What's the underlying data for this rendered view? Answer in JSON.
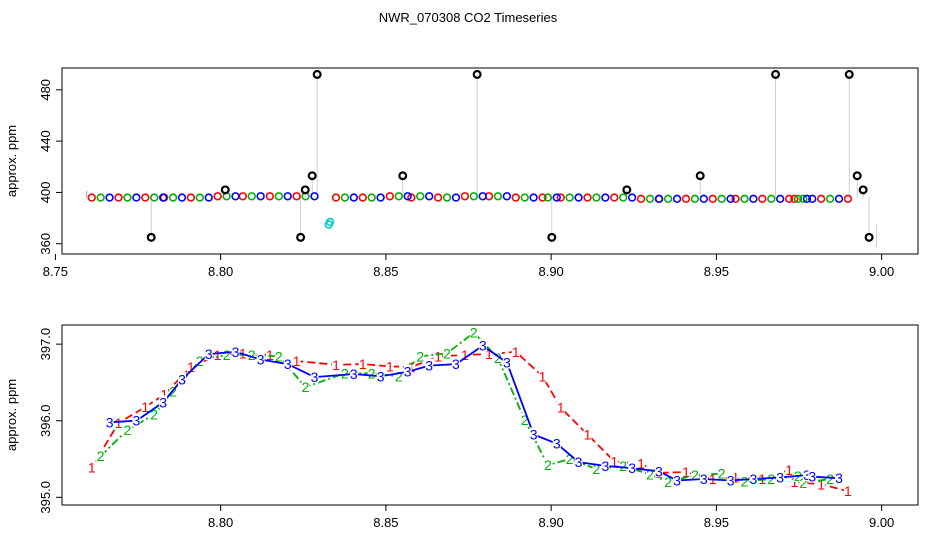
{
  "chart_data": [
    {
      "type": "scatter",
      "title": "NWR_070308  CO2 Timeseries",
      "xlabel": "",
      "ylabel": "approx. ppm",
      "xlim": [
        8.752,
        9.011
      ],
      "ylim": [
        352,
        497
      ],
      "x_ticks": [
        "8.75",
        "8.80",
        "8.85",
        "8.90",
        "8.95",
        "9.00"
      ],
      "y_ticks": [
        "360",
        "400",
        "440",
        "480"
      ],
      "grid": false,
      "series": [
        {
          "color": "#ff0000",
          "marker": "circle",
          "x": [
            8.761,
            8.7691,
            8.7772,
            8.7829,
            8.791,
            8.7991,
            8.8067,
            8.8149,
            8.823,
            8.8349,
            8.843,
            8.8512,
            8.8577,
            8.8658,
            8.8739,
            8.8812,
            8.8893,
            8.8974,
            8.9029,
            8.911,
            8.9191,
            8.9272,
            8.9327,
            8.9408,
            8.9489,
            8.9558,
            8.9639,
            8.972,
            8.9736,
            8.9817,
            8.9898
          ],
          "y": [
            396,
            396,
            396,
            396,
            396,
            397,
            397,
            397,
            397,
            396,
            396,
            397,
            396,
            396,
            397,
            397,
            396,
            396,
            396,
            396,
            396,
            395,
            395,
            395,
            395,
            395,
            395,
            395,
            395,
            395,
            395
          ]
        },
        {
          "color": "#00b000",
          "marker": "circle",
          "x": [
            8.7637,
            8.7718,
            8.7799,
            8.7856,
            8.7937,
            8.8018,
            8.8094,
            8.8176,
            8.8257,
            8.8376,
            8.8457,
            8.8539,
            8.8604,
            8.8685,
            8.8766,
            8.8839,
            8.892,
            8.899,
            8.9056,
            8.9137,
            8.9218,
            8.9299,
            8.9354,
            8.9435,
            8.9516,
            8.9585,
            8.9666,
            8.9747,
            8.9763,
            8.9844
          ],
          "y": [
            396,
            396,
            396,
            396,
            396,
            397,
            397,
            397,
            397,
            396,
            396,
            397,
            397,
            396,
            397,
            397,
            396,
            396,
            396,
            396,
            396,
            395,
            395,
            395,
            395,
            395,
            395,
            395,
            395,
            395
          ]
        },
        {
          "color": "#0000ff",
          "marker": "circle",
          "x": [
            8.7664,
            8.7745,
            8.7826,
            8.7883,
            8.7964,
            8.8045,
            8.8121,
            8.8203,
            8.8284,
            8.8403,
            8.8484,
            8.8566,
            8.8631,
            8.8712,
            8.8793,
            8.8866,
            8.8947,
            8.9017,
            8.9083,
            8.9164,
            8.9245,
            8.9326,
            8.9381,
            8.9462,
            8.9543,
            8.9612,
            8.9693,
            8.9774,
            8.979,
            8.9871
          ],
          "y": [
            396,
            396,
            396,
            396,
            396,
            397,
            397,
            397,
            397,
            396,
            396,
            397,
            397,
            396,
            397,
            397,
            396,
            396,
            396,
            396,
            396,
            395,
            395,
            395,
            395,
            395,
            395,
            395,
            395,
            395
          ]
        },
        {
          "color": "#000000",
          "marker": "circle",
          "x": [
            8.779,
            8.8014,
            8.8242,
            8.8256,
            8.8277,
            8.8292,
            8.8551,
            8.8776,
            8.9002,
            8.9229,
            8.9451,
            8.9679,
            8.9902,
            8.9926,
            8.9944,
            8.9962
          ],
          "y": [
            365,
            402,
            365,
            402,
            413,
            492,
            413,
            492,
            365,
            402,
            413,
            492,
            492,
            413,
            402,
            365
          ]
        },
        {
          "color": "#00cccc",
          "marker": "circle",
          "x": [
            8.8327,
            8.8331
          ],
          "y": [
            375,
            377
          ]
        }
      ]
    },
    {
      "type": "line",
      "title": "",
      "xlabel": "",
      "ylabel": "approx. ppm",
      "xlim": [
        8.752,
        9.011
      ],
      "ylim": [
        394.9,
        397.25
      ],
      "x_ticks": [
        "8.80",
        "8.85",
        "8.90",
        "8.95",
        "9.00"
      ],
      "y_ticks": [
        "395.0",
        "396.0",
        "397.0"
      ],
      "grid": false,
      "series": [
        {
          "name": "1",
          "color": "#ff0000",
          "dash": "8,4",
          "x": [
            8.761,
            8.7691,
            8.7772,
            8.7829,
            8.791,
            8.7991,
            8.8067,
            8.8149,
            8.823,
            8.8349,
            8.843,
            8.8512,
            8.8577,
            8.8658,
            8.8739,
            8.8812,
            8.8893,
            8.8974,
            8.9029,
            8.911,
            8.9191,
            8.9272,
            8.9327,
            8.9408,
            8.9489,
            8.9558,
            8.9639,
            8.972,
            8.9736,
            8.9817,
            8.9898
          ],
          "y": [
            395.39,
            395.97,
            396.18,
            396.34,
            396.7,
            396.86,
            396.88,
            396.86,
            396.78,
            396.73,
            396.74,
            396.71,
            396.7,
            396.84,
            396.86,
            396.87,
            396.9,
            396.58,
            396.17,
            395.82,
            395.47,
            395.44,
            395.32,
            395.33,
            395.24,
            395.26,
            395.24,
            395.36,
            395.2,
            395.17,
            395.08
          ]
        },
        {
          "name": "2",
          "color": "#00b000",
          "dash": "8,3,2,3",
          "x": [
            8.7637,
            8.7718,
            8.7799,
            8.7856,
            8.7937,
            8.8018,
            8.8094,
            8.8176,
            8.8257,
            8.8376,
            8.8457,
            8.8539,
            8.8604,
            8.8685,
            8.8766,
            8.8839,
            8.892,
            8.899,
            8.9056,
            8.9137,
            8.9218,
            8.9299,
            8.9354,
            8.9435,
            8.9516,
            8.9585,
            8.9666,
            8.9747,
            8.9763,
            8.9844
          ],
          "y": [
            395.54,
            395.88,
            396.08,
            396.38,
            396.78,
            396.86,
            396.86,
            396.84,
            396.44,
            396.62,
            396.62,
            396.58,
            396.84,
            396.88,
            397.15,
            396.82,
            396.01,
            395.42,
            395.5,
            395.37,
            395.41,
            395.3,
            395.2,
            395.29,
            395.31,
            395.21,
            395.24,
            395.28,
            395.19,
            395.24
          ]
        },
        {
          "name": "3",
          "color": "#0000ff",
          "dash": "none",
          "x": [
            8.7664,
            8.7745,
            8.7826,
            8.7883,
            8.7964,
            8.8045,
            8.8121,
            8.8203,
            8.8284,
            8.8403,
            8.8484,
            8.8566,
            8.8631,
            8.8712,
            8.8793,
            8.8866,
            8.8947,
            8.9017,
            8.9083,
            8.9164,
            8.9245,
            8.9326,
            8.9381,
            8.9462,
            8.9543,
            8.9612,
            8.9693,
            8.9774,
            8.979,
            8.9871
          ],
          "y": [
            395.98,
            396.0,
            396.24,
            396.54,
            396.87,
            396.9,
            396.8,
            396.74,
            396.57,
            396.61,
            396.58,
            396.64,
            396.72,
            396.74,
            396.98,
            396.76,
            395.82,
            395.7,
            395.46,
            395.41,
            395.38,
            395.34,
            395.22,
            395.24,
            395.22,
            395.24,
            395.26,
            395.29,
            395.27,
            395.25
          ]
        }
      ]
    }
  ]
}
